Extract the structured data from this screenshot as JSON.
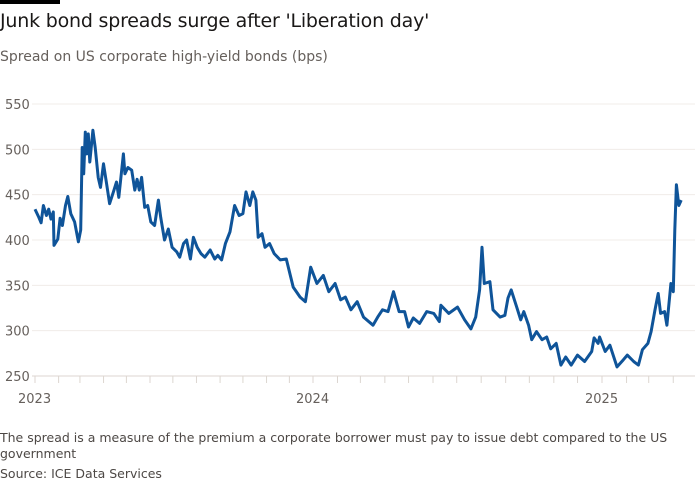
{
  "title": "Junk bond spreads surge after 'Liberation day'",
  "subtitle": "Spread on US corporate high-yield bonds (bps)",
  "note": "The spread is a measure of the premium a corporate borrower must pay to issue debt compared to the US government",
  "source": "Source: ICE Data Services",
  "colors": {
    "line": "#0f5499",
    "grid": "#f0ece8",
    "text": "#66605c"
  },
  "chart_data": {
    "type": "line",
    "title": "Junk bond spreads surge after 'Liberation day'",
    "ylabel": "",
    "xlabel": "",
    "ylim": [
      250,
      550
    ],
    "yticks": [
      250,
      300,
      350,
      400,
      450,
      500,
      550
    ],
    "xticks": [
      "2023",
      "2024",
      "2025"
    ],
    "grid": true,
    "series": [
      {
        "x": [
          "2023-01-01",
          "2023-01-06",
          "2023-01-09",
          "2023-01-12",
          "2023-01-16",
          "2023-01-19",
          "2023-01-22",
          "2023-01-25",
          "2023-01-26",
          "2023-01-31",
          "2023-02-03",
          "2023-02-06",
          "2023-02-10",
          "2023-02-13",
          "2023-02-17",
          "2023-02-22",
          "2023-02-27",
          "2023-03-02",
          "2023-03-04",
          "2023-03-06",
          "2023-03-08",
          "2023-03-10",
          "2023-03-12",
          "2023-03-14",
          "2023-03-18",
          "2023-03-21",
          "2023-03-25",
          "2023-03-28",
          "2023-04-01",
          "2023-04-05",
          "2023-04-09",
          "2023-04-14",
          "2023-04-18",
          "2023-04-21",
          "2023-04-27",
          "2023-04-29",
          "2023-05-03",
          "2023-05-08",
          "2023-05-12",
          "2023-05-15",
          "2023-05-18",
          "2023-05-21",
          "2023-05-25",
          "2023-05-29",
          "2023-06-02",
          "2023-06-07",
          "2023-06-12",
          "2023-06-15",
          "2023-06-20",
          "2023-06-25",
          "2023-06-30",
          "2023-07-06",
          "2023-07-10",
          "2023-07-15",
          "2023-07-19",
          "2023-07-24",
          "2023-07-28",
          "2023-08-02",
          "2023-08-07",
          "2023-08-12",
          "2023-08-19",
          "2023-08-25",
          "2023-08-29",
          "2023-09-03",
          "2023-09-08",
          "2023-09-14",
          "2023-09-20",
          "2023-09-26",
          "2023-10-01",
          "2023-10-05",
          "2023-10-10",
          "2023-10-14",
          "2023-10-18",
          "2023-10-21",
          "2023-10-26",
          "2023-10-30",
          "2023-11-05",
          "2023-11-11",
          "2023-11-19",
          "2023-11-27",
          "2023-12-06",
          "2023-12-15",
          "2023-12-22",
          "2023-12-29",
          "2024-01-06",
          "2024-01-14",
          "2024-01-21",
          "2024-01-29",
          "2024-02-05",
          "2024-02-11",
          "2024-02-18",
          "2024-02-26",
          "2024-03-05",
          "2024-03-17",
          "2024-03-23",
          "2024-03-29",
          "2024-04-05",
          "2024-04-12",
          "2024-04-19",
          "2024-04-26",
          "2024-05-01",
          "2024-05-07",
          "2024-05-15",
          "2024-05-24",
          "2024-06-02",
          "2024-06-09",
          "2024-06-11",
          "2024-06-21",
          "2024-07-02",
          "2024-07-11",
          "2024-07-19",
          "2024-07-25",
          "2024-07-30",
          "2024-08-02",
          "2024-08-05",
          "2024-08-12",
          "2024-08-16",
          "2024-08-25",
          "2024-08-31",
          "2024-09-04",
          "2024-09-08",
          "2024-09-15",
          "2024-09-20",
          "2024-09-24",
          "2024-09-30",
          "2024-10-04",
          "2024-10-10",
          "2024-10-17",
          "2024-10-23",
          "2024-10-28",
          "2024-11-04",
          "2024-11-10",
          "2024-11-16",
          "2024-11-23",
          "2024-12-01",
          "2024-12-10",
          "2024-12-19",
          "2024-12-22",
          "2024-12-27",
          "2024-12-29",
          "2025-01-05",
          "2025-01-11",
          "2025-01-20",
          "2025-01-28",
          "2025-02-02",
          "2025-02-10",
          "2025-02-16",
          "2025-02-21",
          "2025-02-28",
          "2025-03-04",
          "2025-03-09",
          "2025-03-13",
          "2025-03-16",
          "2025-03-21",
          "2025-03-24",
          "2025-03-29",
          "2025-04-01",
          "2025-04-03",
          "2025-04-05",
          "2025-04-08",
          "2025-04-11"
        ],
        "y": [
          434,
          425,
          419,
          438,
          427,
          434,
          423,
          431,
          394,
          401,
          424,
          416,
          438,
          448,
          429,
          420,
          398,
          411,
          502,
          473,
          519,
          495,
          517,
          486,
          521,
          502,
          469,
          458,
          484,
          462,
          440,
          453,
          464,
          447,
          495,
          473,
          480,
          477,
          455,
          467,
          455,
          469,
          436,
          438,
          420,
          416,
          444,
          425,
          400,
          412,
          392,
          387,
          381,
          396,
          400,
          379,
          403,
          392,
          385,
          381,
          389,
          379,
          383,
          378,
          396,
          409,
          438,
          427,
          429,
          453,
          438,
          453,
          444,
          403,
          407,
          392,
          396,
          385,
          378,
          379,
          348,
          337,
          332,
          370,
          352,
          361,
          343,
          352,
          334,
          337,
          323,
          332,
          315,
          306,
          315,
          323,
          321,
          343,
          321,
          321,
          304,
          314,
          308,
          321,
          319,
          310,
          328,
          319,
          326,
          312,
          302,
          315,
          345,
          392,
          352,
          354,
          323,
          315,
          317,
          336,
          345,
          326,
          312,
          321,
          306,
          290,
          299,
          290,
          293,
          280,
          286,
          262,
          271,
          262,
          273,
          266,
          277,
          292,
          286,
          293,
          277,
          284,
          260,
          268,
          273,
          266,
          262,
          279,
          286,
          299,
          323,
          341,
          319,
          321,
          306,
          352,
          343,
          411,
          461,
          438,
          444
        ]
      }
    ]
  }
}
